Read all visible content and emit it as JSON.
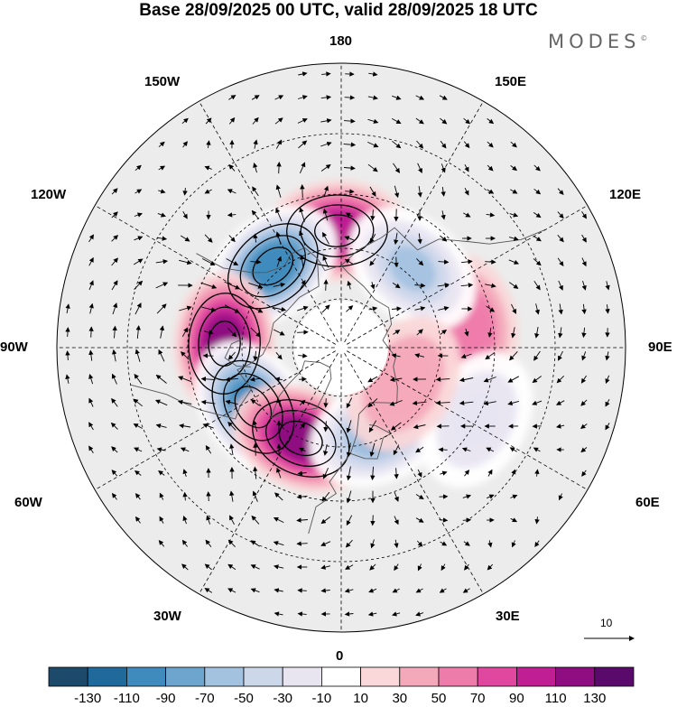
{
  "title": "Base 28/09/2025 00 UTC, valid 28/09/2025 18 UTC",
  "brand": {
    "name": "MODES",
    "mark": "©"
  },
  "longitude_labels": {
    "lon_180": "180",
    "lon_150w": "150W",
    "lon_150e": "150E",
    "lon_120w": "120W",
    "lon_120e": "120E",
    "lon_90w": "90W",
    "lon_90e": "90E",
    "lon_60w": "60W",
    "lon_60e": "60E",
    "lon_30w": "30W",
    "lon_30e": "30E",
    "lon_0": "0"
  },
  "reference_vector": {
    "label": "10"
  },
  "colorbar": {
    "ticks": [
      "-130",
      "-110",
      "-90",
      "-70",
      "-50",
      "-30",
      "-10",
      "10",
      "30",
      "50",
      "70",
      "90",
      "110",
      "130"
    ],
    "colors": [
      "#1d4a6b",
      "#1f6a9b",
      "#3f8bbd",
      "#6ea5cf",
      "#a3c2e0",
      "#cdd7ea",
      "#e8e5f1",
      "#ffffff",
      "#fad7d8",
      "#f4a9bb",
      "#ee7cab",
      "#e0489f",
      "#bf1f93",
      "#8e0e81",
      "#5a0a6b"
    ]
  },
  "anomaly_centers": [
    {
      "name": "positive-anomaly-north-pacific",
      "lon": -178,
      "lat": 55,
      "value": 95
    },
    {
      "name": "negative-anomaly-alaska",
      "lon": -140,
      "lat": 58,
      "value": -110
    },
    {
      "name": "positive-anomaly-canada",
      "lon": -92,
      "lat": 55,
      "value": 125
    },
    {
      "name": "negative-anomaly-labrador",
      "lon": -56,
      "lat": 58,
      "value": -110
    },
    {
      "name": "positive-anomaly-north-atlantic",
      "lon": -24,
      "lat": 60,
      "value": 115
    },
    {
      "name": "negative-anomaly-scandinavia",
      "lon": 24,
      "lat": 62,
      "value": -80
    },
    {
      "name": "positive-anomaly-siberia",
      "lon": 100,
      "lat": 52,
      "value": 55
    },
    {
      "name": "negative-anomaly-east-siberia",
      "lon": 138,
      "lat": 58,
      "value": -55
    },
    {
      "name": "weak-negative-anomaly-central-asia",
      "lon": 62,
      "lat": 45,
      "value": -30
    },
    {
      "name": "weak-positive-anomaly-west-siberia",
      "lon": 60,
      "lat": 68,
      "value": 40
    }
  ]
}
